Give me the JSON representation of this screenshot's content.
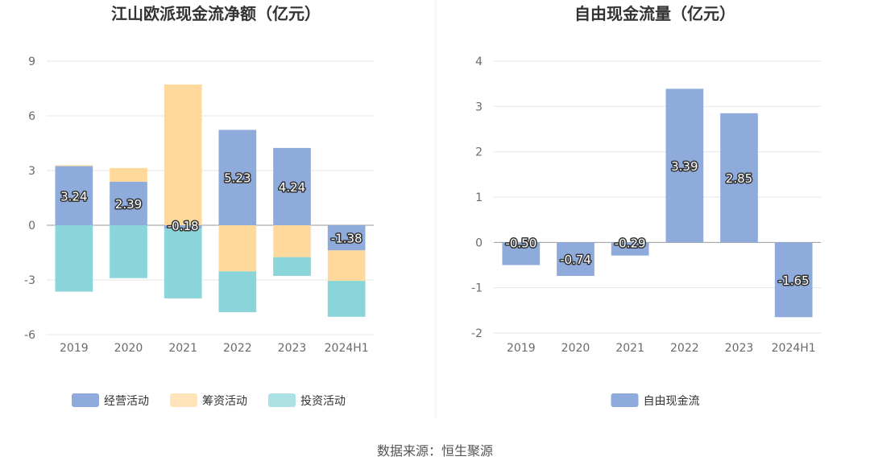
{
  "chart_data": [
    {
      "type": "bar",
      "stacked": true,
      "title": "江山欧派现金流净额（亿元）",
      "categories": [
        "2019",
        "2020",
        "2021",
        "2022",
        "2023",
        "2024H1"
      ],
      "ylim": [
        -6,
        9
      ],
      "yticks": [
        "9",
        "6",
        "3",
        "0",
        "-3",
        "-6"
      ],
      "ytick_values": [
        9,
        6,
        3,
        0,
        -3,
        -6
      ],
      "grid": true,
      "legend_position": "bottom",
      "series": [
        {
          "name": "经营活动",
          "color": "#8eabdc",
          "values": [
            3.24,
            2.39,
            -0.18,
            5.23,
            4.24,
            -1.38
          ],
          "labels": [
            "3.24",
            "2.39",
            "-0.18",
            "5.23",
            "4.24",
            "-1.38"
          ]
        },
        {
          "name": "筹资活动",
          "color": "#ffd99b",
          "values": [
            0.05,
            0.75,
            7.72,
            -2.53,
            -1.75,
            -1.67
          ]
        },
        {
          "name": "投资活动",
          "color": "#89d5d9",
          "values": [
            -3.64,
            -2.9,
            -3.83,
            -2.24,
            -1.03,
            -1.97
          ]
        }
      ]
    },
    {
      "type": "bar",
      "title": "自由现金流量（亿元）",
      "categories": [
        "2019",
        "2020",
        "2021",
        "2022",
        "2023",
        "2024H1"
      ],
      "ylim": [
        -2,
        4
      ],
      "yticks": [
        "4",
        "3",
        "2",
        "1",
        "0",
        "-1",
        "-2"
      ],
      "ytick_values": [
        4,
        3,
        2,
        1,
        0,
        -1,
        -2
      ],
      "grid": true,
      "legend_position": "bottom",
      "series": [
        {
          "name": "自由现金流",
          "color": "#8eabdc",
          "values": [
            -0.5,
            -0.74,
            -0.29,
            3.39,
            2.85,
            -1.65
          ],
          "labels": [
            "-0.50",
            "-0.74",
            "-0.29",
            "3.39",
            "2.85",
            "-1.65"
          ]
        }
      ]
    }
  ],
  "source": "数据来源：恒生聚源"
}
